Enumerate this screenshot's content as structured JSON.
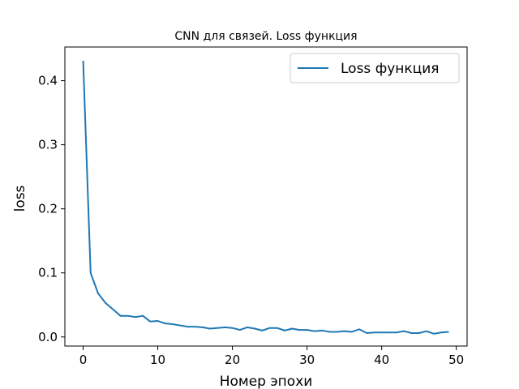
{
  "chart_data": {
    "type": "line",
    "title": "CNN для связей. Loss функция",
    "xlabel": "Номер эпохи",
    "ylabel": "loss",
    "xlim": [
      -2.45,
      51.45
    ],
    "ylim": [
      -0.0142,
      0.4526
    ],
    "xticks": [
      0,
      10,
      20,
      30,
      40,
      50
    ],
    "xtick_labels": [
      "0",
      "10",
      "20",
      "30",
      "40",
      "50"
    ],
    "yticks": [
      0.0,
      0.1,
      0.2,
      0.3,
      0.4
    ],
    "ytick_labels": [
      "0.0",
      "0.1",
      "0.2",
      "0.3",
      "0.4"
    ],
    "grid": false,
    "legend_position": "top-right",
    "series": [
      {
        "name": "Loss функция",
        "color": "#1f77b4",
        "x": [
          0,
          1,
          2,
          3,
          4,
          5,
          6,
          7,
          8,
          9,
          10,
          11,
          12,
          13,
          14,
          15,
          16,
          17,
          18,
          19,
          20,
          21,
          22,
          23,
          24,
          25,
          26,
          27,
          28,
          29,
          30,
          31,
          32,
          33,
          34,
          35,
          36,
          37,
          38,
          39,
          40,
          41,
          42,
          43,
          44,
          45,
          46,
          47,
          48,
          49
        ],
        "y": [
          0.431,
          0.1,
          0.068,
          0.053,
          0.043,
          0.033,
          0.033,
          0.031,
          0.033,
          0.024,
          0.025,
          0.021,
          0.02,
          0.018,
          0.016,
          0.016,
          0.015,
          0.013,
          0.014,
          0.015,
          0.014,
          0.011,
          0.015,
          0.013,
          0.01,
          0.014,
          0.014,
          0.01,
          0.013,
          0.011,
          0.011,
          0.009,
          0.01,
          0.008,
          0.008,
          0.009,
          0.008,
          0.012,
          0.006,
          0.007,
          0.007,
          0.007,
          0.007,
          0.009,
          0.006,
          0.006,
          0.009,
          0.005,
          0.007,
          0.008
        ]
      }
    ]
  }
}
